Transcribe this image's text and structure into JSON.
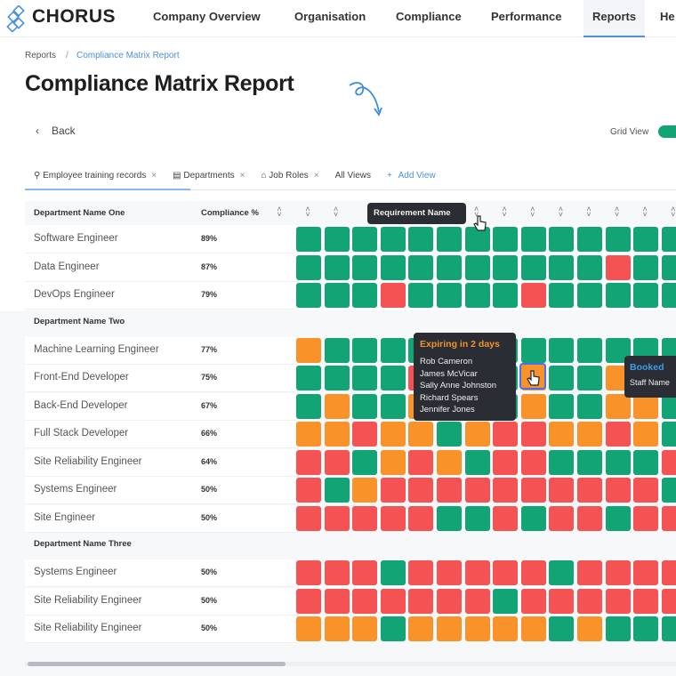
{
  "app": {
    "name": "CHORUS"
  },
  "nav": [
    {
      "label": "Company Overview"
    },
    {
      "label": "Organisation"
    },
    {
      "label": "Compliance"
    },
    {
      "label": "Performance"
    },
    {
      "label": "Reports",
      "active": true
    },
    {
      "label": "He"
    }
  ],
  "breadcrumb": {
    "root": "Reports",
    "separator": "/",
    "current": "Compliance Matrix Report"
  },
  "page": {
    "title": "Compliance Matrix Report",
    "back_label": "Back",
    "grid_view_label": "Grid View",
    "grid_view_on": true
  },
  "tabs": [
    {
      "label": "Employee training records",
      "icon": "user-icon",
      "closable": true,
      "active": true
    },
    {
      "label": "Departments",
      "icon": "building-icon",
      "closable": true
    },
    {
      "label": "Job Roles",
      "icon": "briefcase-icon",
      "closable": true
    },
    {
      "label": "All Views"
    },
    {
      "label": "Add View",
      "icon": "plus-icon"
    }
  ],
  "table": {
    "col_name": "Department Name One",
    "col_pct": "Compliance %"
  },
  "colors": {
    "G": "#12a474",
    "R": "#f55253",
    "O": "#fa922a",
    "accent": "#4a90e2"
  },
  "groups": [
    {
      "name": "Department Name One",
      "rows": [
        {
          "role": "Software Engineer",
          "pct": "89%",
          "cells": "GGGGGGGGGGGGGG"
        },
        {
          "role": "Data Engineer",
          "pct": "87%",
          "cells": "GGGGGGGGGGGRGG"
        },
        {
          "role": "DevOps Engineer",
          "pct": "79%",
          "cells": "GGGRGGGGRGGGGG"
        }
      ]
    },
    {
      "name": "Department Name Two",
      "rows": [
        {
          "role": "Machine Learning Engineer",
          "pct": "77%",
          "cells": "OGGGGGGGGGGGGG"
        },
        {
          "role": "Front-End Developer",
          "pct": "75%",
          "cells": "GGGGRGGGOGGOOG"
        },
        {
          "role": "Back-End Developer",
          "pct": "67%",
          "cells": "GOGGOGGGOGGOOG"
        },
        {
          "role": "Full Stack Developer",
          "pct": "66%",
          "cells": "OOROOGORROOROG"
        },
        {
          "role": "Site Reliability Engineer",
          "pct": "64%",
          "cells": "RRGOROGRRGGGGR"
        },
        {
          "role": "Systems Engineer",
          "pct": "50%",
          "cells": "RGORRRRRRRRRRG"
        },
        {
          "role": "Site Engineer",
          "pct": "50%",
          "cells": "RRRRRGGRGRRGRR"
        }
      ]
    },
    {
      "name": "Department Name Three",
      "rows": [
        {
          "role": "Systems Engineer",
          "pct": "50%",
          "cells": "RRRGRRRRRGRRRR"
        },
        {
          "role": "Site Reliability Engineer",
          "pct": "50%",
          "cells": "RRRRRRRGRRRRRR"
        },
        {
          "role": "Site Reliability Engineer",
          "pct": "50%",
          "cells": "OOOGOOOOOGOGGG"
        }
      ]
    }
  ],
  "tooltips": {
    "header": "Requirement Name",
    "expiring": {
      "title": "Expiring in 2 days",
      "names": [
        "Rob Cameron",
        "James McVicar",
        "Sally Anne Johnston",
        "Richard Spears",
        "Jennifer Jones"
      ]
    },
    "booked": {
      "title": "Booked",
      "text": "Staff Name"
    }
  }
}
